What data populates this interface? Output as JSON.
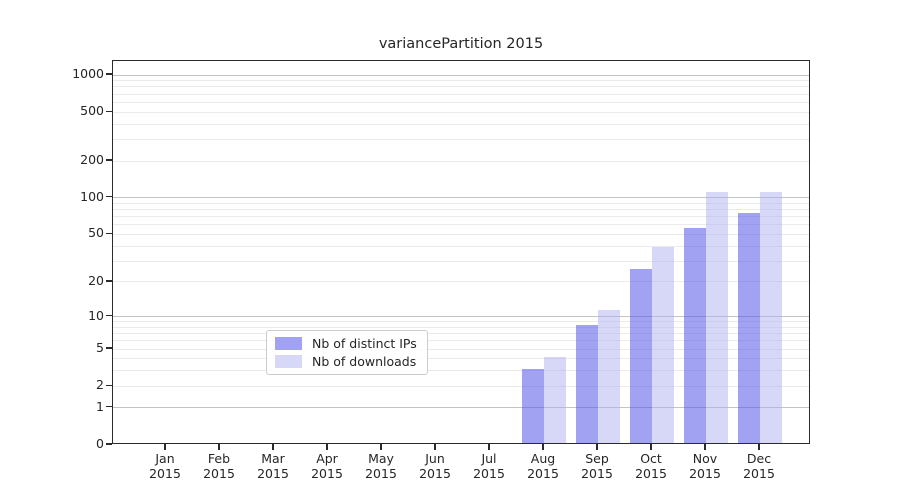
{
  "chart_data": {
    "type": "bar",
    "title": "variancePartition 2015",
    "x_year": "2015",
    "categories": [
      "Jan",
      "Feb",
      "Mar",
      "Apr",
      "May",
      "Jun",
      "Jul",
      "Aug",
      "Sep",
      "Oct",
      "Nov",
      "Dec"
    ],
    "series": [
      {
        "name": "Nb of distinct IPs",
        "color": "rgba(86,86,232,0.55)",
        "legend_color": "#a2a2f2",
        "values": [
          0,
          0,
          0,
          0,
          0,
          0,
          0,
          3,
          8,
          25,
          54,
          73
        ]
      },
      {
        "name": "Nb of downloads",
        "color": "rgba(175,175,242,0.5)",
        "legend_color": "#d7d7f8",
        "values": [
          0,
          0,
          0,
          0,
          0,
          0,
          0,
          4,
          11,
          38,
          107,
          107
        ]
      }
    ],
    "y_ticks": [
      0,
      1,
      2,
      5,
      10,
      20,
      50,
      100,
      200,
      500,
      1000
    ],
    "y_scale": "log10(1+y)",
    "ylim": [
      0,
      1300
    ],
    "grid": "on",
    "legend_position": "bottom-center",
    "colors": {
      "major_grid": "#c3c3c3",
      "minor_grid": "#ebebeb",
      "spine": "#2b2b2b",
      "text": "#262626"
    }
  }
}
